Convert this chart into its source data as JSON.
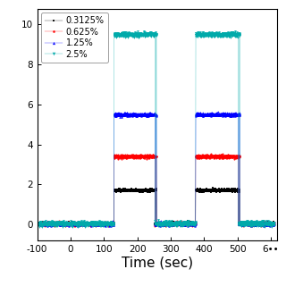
{
  "title": "",
  "xlabel": "Time (sec)",
  "ylabel": "",
  "xlim": [
    -100,
    620
  ],
  "ylim": [
    -0.8,
    10.8
  ],
  "ytick_positions": [
    0,
    2,
    4,
    6,
    8,
    10
  ],
  "ytick_labels": [
    "0",
    "2",
    "4",
    "6",
    "8",
    "10"
  ],
  "xtick_positions": [
    -100,
    0,
    100,
    200,
    300,
    400,
    500,
    600
  ],
  "xtick_labels": [
    "-100",
    "0",
    "100",
    "200",
    "300",
    "400",
    "500",
    "6••"
  ],
  "background_color": "#ffffff",
  "series": [
    {
      "label": "0.3125%",
      "color": "#000000",
      "marker": "s",
      "marker_size": 1.5,
      "level_on": 1.7,
      "level_off": 0.03,
      "noise_std": 0.035
    },
    {
      "label": "0.625%",
      "color": "#ff0000",
      "marker": "o",
      "marker_size": 1.5,
      "level_on": 3.4,
      "level_off": 0.03,
      "noise_std": 0.04
    },
    {
      "label": "1.25%",
      "color": "#0000ff",
      "marker": "^",
      "marker_size": 1.8,
      "level_on": 5.5,
      "level_off": 0.03,
      "noise_std": 0.04
    },
    {
      "label": "2.5%",
      "color": "#00aaaa",
      "marker": "v",
      "marker_size": 2.0,
      "level_on": 9.5,
      "level_off": 0.03,
      "noise_std": 0.055
    }
  ],
  "pulse1_start": 130,
  "pulse1_end": 255,
  "pulse2_start": 375,
  "pulse2_end": 505,
  "n_points": 2500,
  "t_start": -95,
  "t_end": 610
}
